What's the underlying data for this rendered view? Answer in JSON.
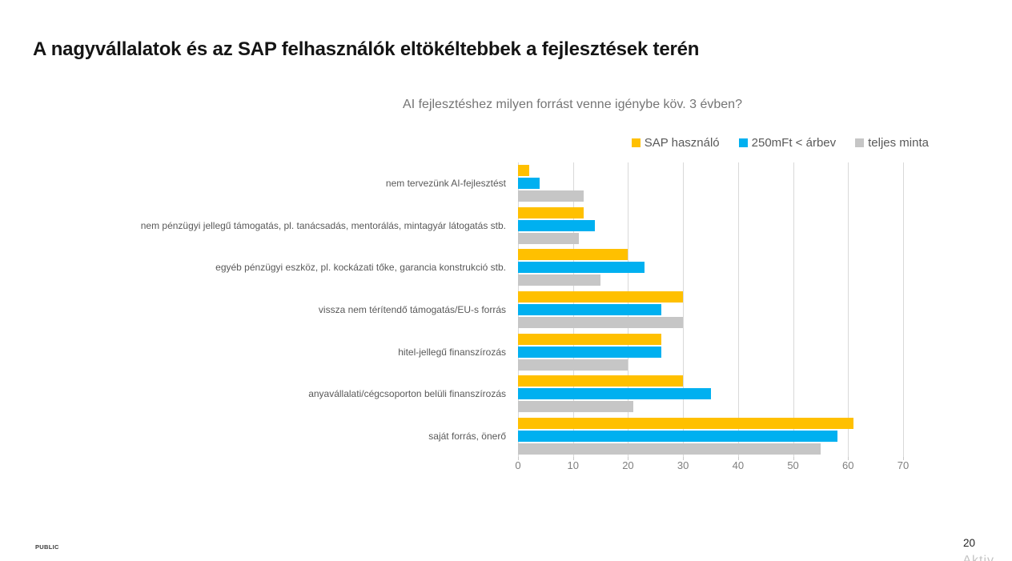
{
  "slide": {
    "title": "A nagyvállalatok és az SAP felhasználók eltökéltebbek a fejlesztések terén",
    "footer_left": "PUBLIC",
    "page_number": "20",
    "partial_logo_text": "Aktiv"
  },
  "chart_data": {
    "type": "bar",
    "orientation": "horizontal",
    "title": "AI fejlesztéshez milyen forrást venne igénybe köv. 3 évben?",
    "categories": [
      "nem tervezünk AI-fejlesztést",
      "nem pénzügyi jellegű támogatás, pl. tanácsadás, mentorálás, mintagyár látogatás stb.",
      "egyéb pénzügyi eszköz, pl. kockázati tőke, garancia konstrukció stb.",
      "vissza nem térítendő támogatás/EU-s forrás",
      "hitel-jellegű finanszírozás",
      "anyavállalati/cégcsoporton belüli finanszírozás",
      "saját forrás, önerő"
    ],
    "series": [
      {
        "name": "SAP használó",
        "color": "#FFC000",
        "values": [
          2,
          12,
          20,
          30,
          26,
          30,
          61
        ]
      },
      {
        "name": "250mFt < árbev",
        "color": "#00B0F0",
        "values": [
          4,
          14,
          23,
          26,
          26,
          35,
          58
        ]
      },
      {
        "name": "teljes minta",
        "color": "#C6C6C6",
        "values": [
          12,
          11,
          15,
          30,
          20,
          21,
          55
        ]
      }
    ],
    "xlim": [
      0,
      70
    ],
    "xticks": [
      0,
      10,
      20,
      30,
      40,
      50,
      60,
      70
    ],
    "legend_position": "top-right",
    "grid": "vertical",
    "colors": {
      "gridline": "#D9D9D9",
      "tick_label": "#7F7F7F",
      "category_label": "#595959",
      "chart_title": "#757575"
    }
  }
}
